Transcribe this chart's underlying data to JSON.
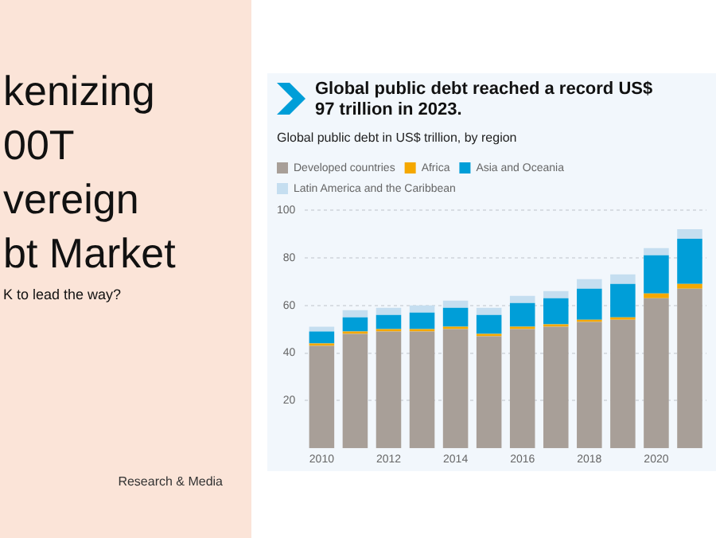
{
  "chart_data": {
    "type": "bar",
    "title": "Global public debt reached a record US$ 97 trillion in 2023.",
    "subtitle": "Global public debt in US$ trillion, by region",
    "categories": [
      "2010",
      null,
      "2012",
      null,
      "2014",
      null,
      "2016",
      null,
      "2018",
      null,
      "2020",
      null
    ],
    "series": [
      {
        "name": "Developed countries",
        "color": "#a89f98",
        "values": [
          43,
          48,
          49,
          49,
          50,
          47,
          50,
          51,
          53,
          54,
          63,
          67
        ]
      },
      {
        "name": "Africa",
        "color": "#f5a800",
        "values": [
          1,
          1,
          1,
          1,
          1,
          1,
          1,
          1,
          1,
          1,
          2,
          2
        ]
      },
      {
        "name": "Asia and Oceania",
        "color": "#009ed8",
        "values": [
          5,
          6,
          6,
          7,
          8,
          8,
          10,
          11,
          13,
          14,
          16,
          19
        ]
      },
      {
        "name": "Latin America and the Caribbean",
        "color": "#c5def0",
        "values": [
          2,
          3,
          3,
          3,
          3,
          3,
          3,
          3,
          4,
          4,
          3,
          4
        ]
      }
    ],
    "stacked": true,
    "ylim": [
      0,
      100
    ],
    "yticks": [
      20,
      40,
      60,
      80,
      100
    ],
    "grid": "y",
    "legend": "top left",
    "annotations": [
      "kenizing",
      "00T",
      "vereign",
      "bt Market",
      "K to lead the way?",
      "Research & Media"
    ]
  }
}
